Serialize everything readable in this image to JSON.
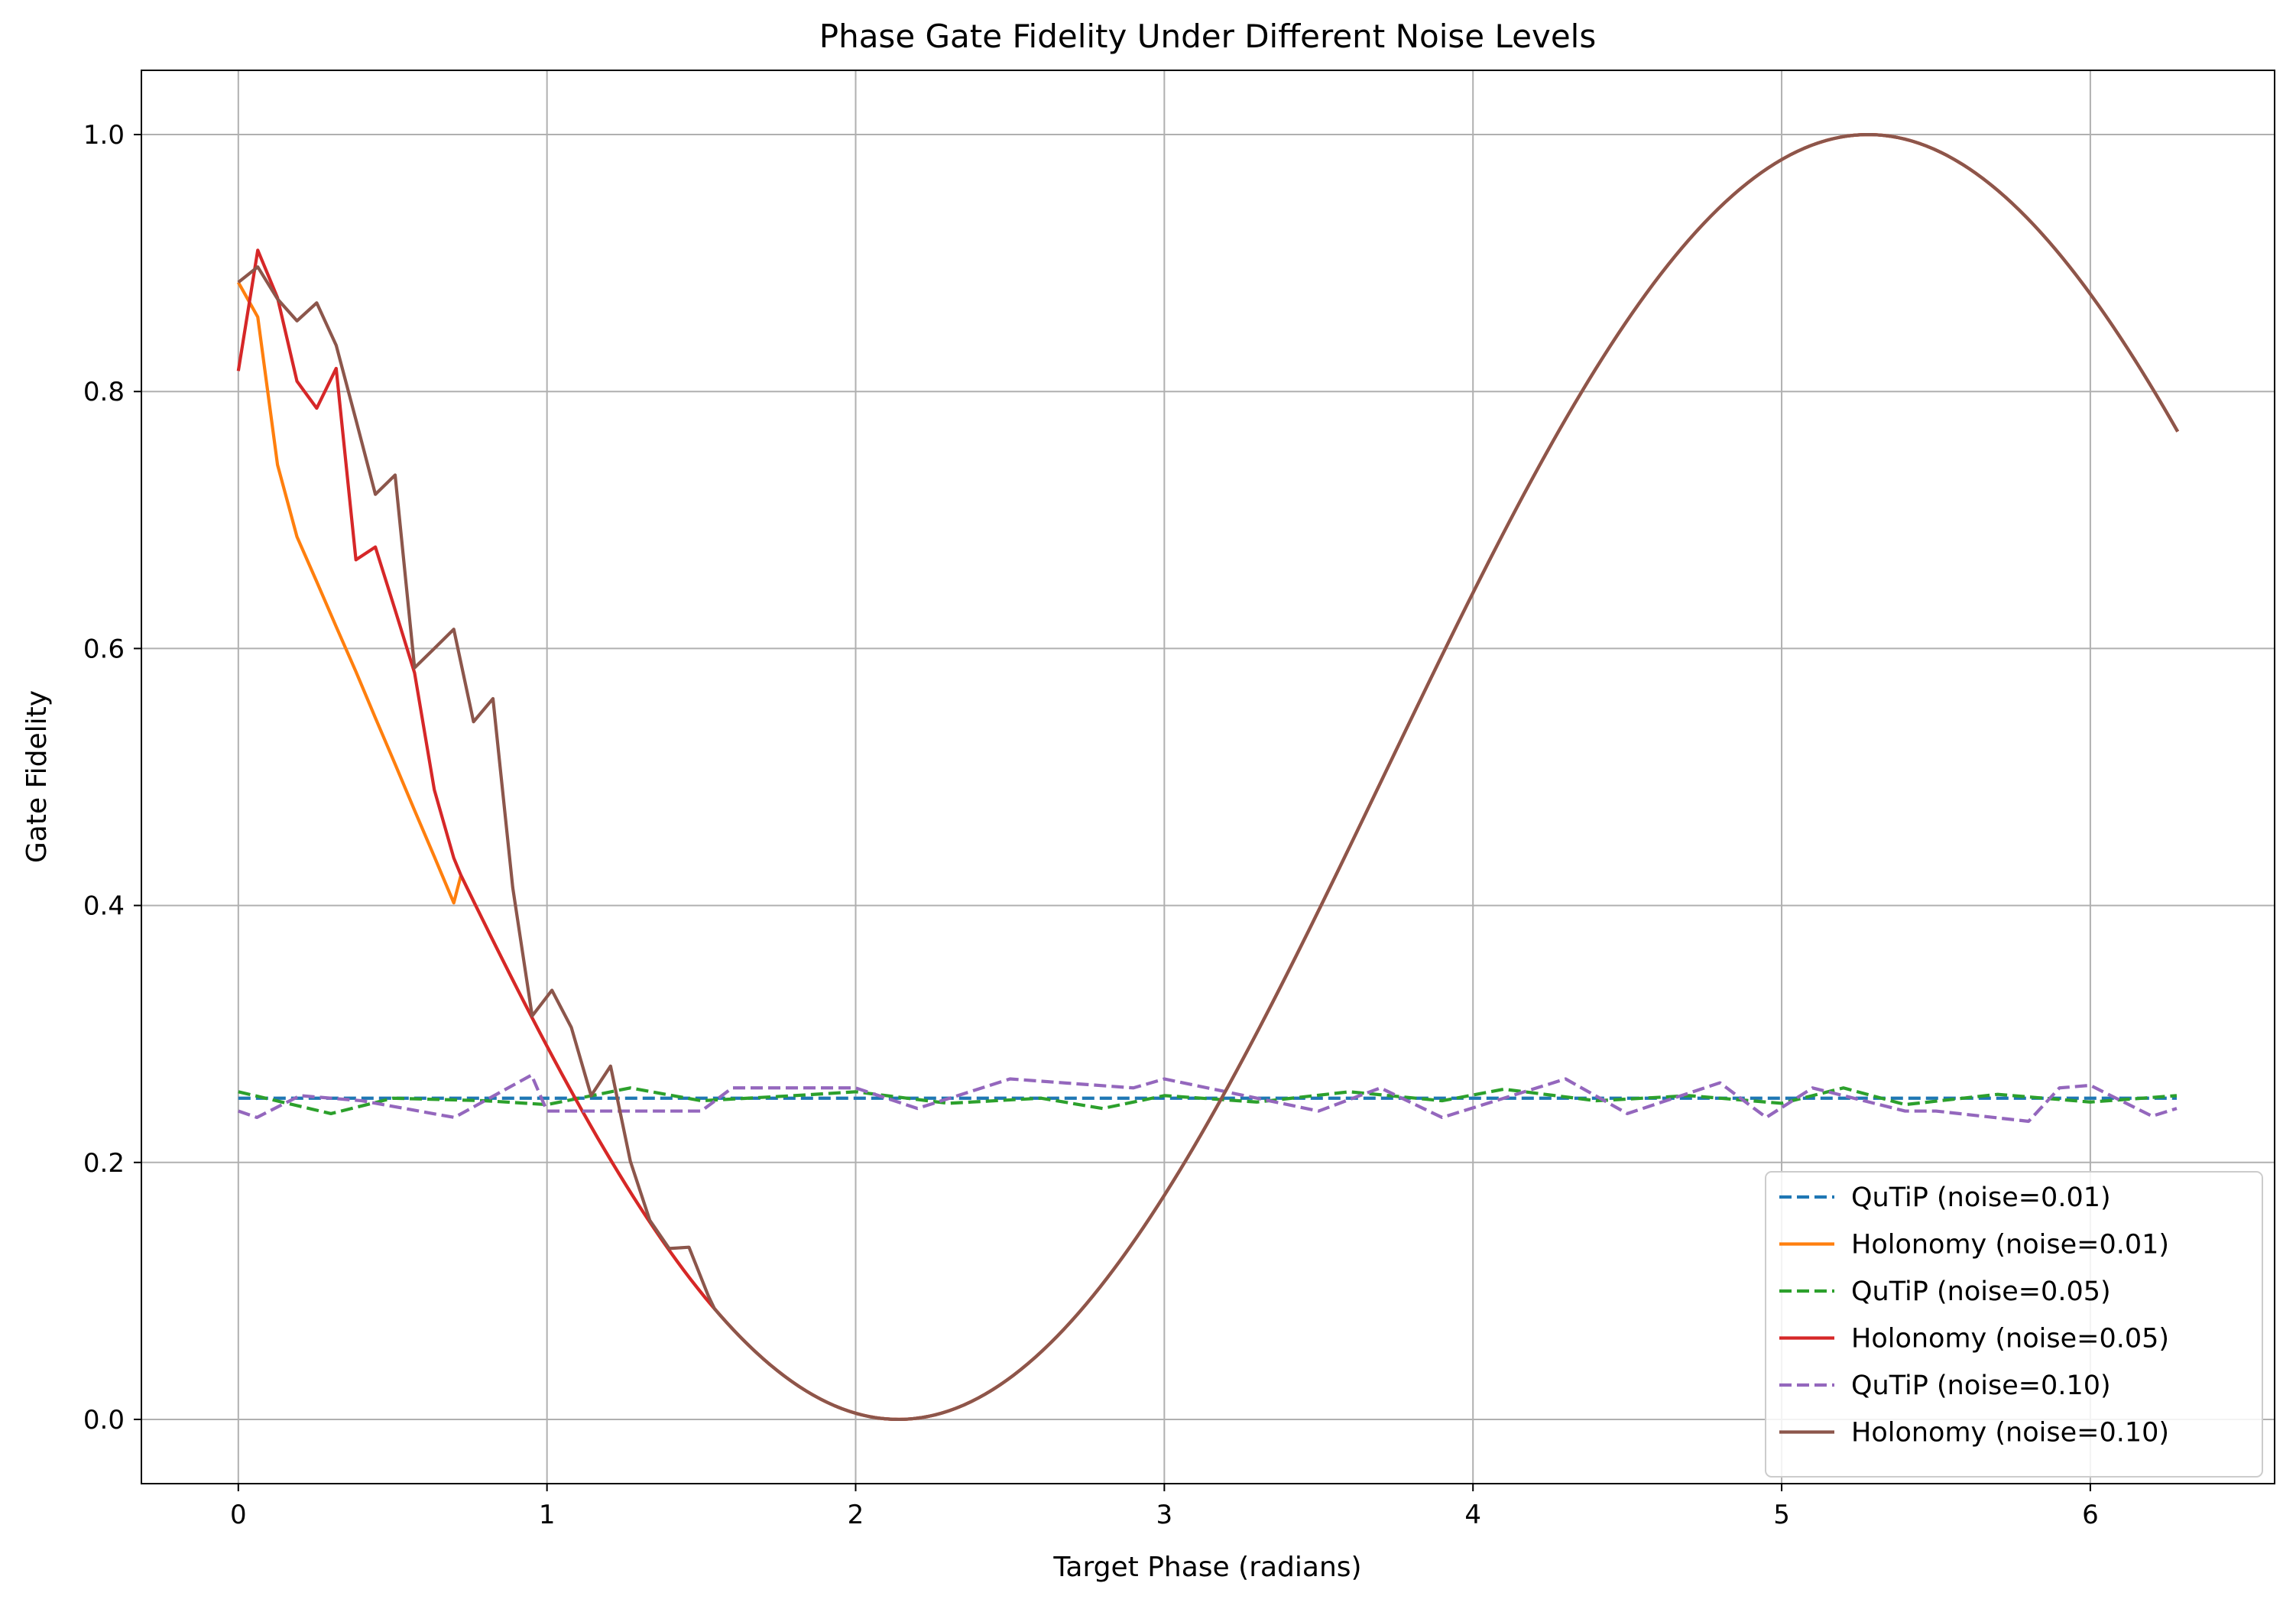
{
  "chart_data": {
    "type": "line",
    "title": "Phase Gate Fidelity Under Different Noise Levels",
    "xlabel": "Target Phase (radians)",
    "ylabel": "Gate Fidelity",
    "xlim": [
      -0.314,
      6.597
    ],
    "ylim": [
      -0.05,
      1.05
    ],
    "xticks": [
      0,
      1,
      2,
      3,
      4,
      5,
      6
    ],
    "yticks": [
      0.0,
      0.2,
      0.4,
      0.6,
      0.8,
      1.0
    ],
    "grid": true,
    "legend_position": "bottom-right",
    "series": [
      {
        "name": "QuTiP (noise=0.01)",
        "color": "#1f77b4",
        "dash": true,
        "x": [
          0,
          0.5,
          1.0,
          1.5,
          2.0,
          2.5,
          3.0,
          3.5,
          4.0,
          4.5,
          5.0,
          5.5,
          6.0,
          6.28
        ],
        "y": [
          0.25,
          0.25,
          0.25,
          0.25,
          0.25,
          0.25,
          0.25,
          0.25,
          0.25,
          0.25,
          0.25,
          0.25,
          0.25,
          0.25
        ]
      },
      {
        "name": "Holonomy (noise=0.01)",
        "color": "#ff7f0e",
        "dash": false,
        "x": [
          0,
          0.063,
          0.127,
          0.19,
          0.254,
          0.317,
          0.381,
          0.444,
          0.508,
          0.571,
          0.635,
          0.698
        ],
        "y": [
          0.885,
          0.858,
          0.743,
          0.687,
          0.652,
          0.617,
          0.582,
          0.546,
          0.51,
          0.474,
          0.438,
          0.402
        ]
      },
      {
        "name": "QuTiP (noise=0.05)",
        "color": "#2ca02c",
        "dash": true,
        "x": [
          0,
          0.3,
          0.5,
          0.8,
          1.0,
          1.27,
          1.5,
          1.8,
          2.0,
          2.3,
          2.6,
          2.8,
          3.0,
          3.3,
          3.6,
          3.9,
          4.1,
          4.4,
          4.7,
          5.0,
          5.2,
          5.4,
          5.7,
          6.0,
          6.28
        ],
        "y": [
          0.255,
          0.238,
          0.25,
          0.248,
          0.245,
          0.258,
          0.248,
          0.252,
          0.255,
          0.246,
          0.25,
          0.242,
          0.252,
          0.247,
          0.255,
          0.248,
          0.257,
          0.248,
          0.252,
          0.246,
          0.258,
          0.245,
          0.253,
          0.247,
          0.252
        ]
      },
      {
        "name": "Holonomy (noise=0.05)",
        "color": "#d62728",
        "dash": false,
        "x": [
          0,
          0.063,
          0.127,
          0.19,
          0.254,
          0.317,
          0.381,
          0.444,
          0.508,
          0.571,
          0.635,
          0.698
        ],
        "y": [
          0.816,
          0.91,
          0.873,
          0.808,
          0.787,
          0.818,
          0.669,
          0.679,
          0.63,
          0.581,
          0.49,
          0.437
        ]
      },
      {
        "name": "QuTiP (noise=0.10)",
        "color": "#9467bd",
        "dash": true,
        "x": [
          0,
          0.06,
          0.2,
          0.4,
          0.7,
          0.95,
          1.0,
          1.5,
          1.6,
          2.0,
          2.2,
          2.5,
          2.9,
          3.0,
          3.5,
          3.7,
          3.9,
          4.3,
          4.5,
          4.8,
          4.95,
          5.1,
          5.4,
          5.5,
          5.8,
          5.9,
          6.0,
          6.2,
          6.28
        ],
        "y": [
          0.24,
          0.235,
          0.252,
          0.248,
          0.235,
          0.268,
          0.24,
          0.24,
          0.258,
          0.258,
          0.242,
          0.265,
          0.258,
          0.265,
          0.24,
          0.258,
          0.235,
          0.265,
          0.238,
          0.262,
          0.235,
          0.258,
          0.24,
          0.24,
          0.232,
          0.258,
          0.26,
          0.236,
          0.242
        ]
      },
      {
        "name": "Holonomy (noise=0.10)",
        "color": "#8c564b",
        "dash": false,
        "x": [
          0,
          0.063,
          0.127,
          0.19,
          0.254,
          0.317,
          0.381,
          0.444,
          0.508,
          0.571,
          0.635,
          0.698,
          0.762,
          0.825,
          0.889,
          0.952,
          1.016,
          1.079,
          1.143,
          1.206,
          1.27,
          1.333,
          1.396,
          1.46,
          1.523
        ],
        "y": [
          0.885,
          0.897,
          0.872,
          0.855,
          0.869,
          0.836,
          0.778,
          0.72,
          0.735,
          0.585,
          0.6,
          0.615,
          0.543,
          0.561,
          0.414,
          0.314,
          0.334,
          0.305,
          0.252,
          0.275,
          0.201,
          0.155,
          0.133,
          0.134,
          0.096
        ]
      }
    ],
    "common_curve": {
      "description_formula": "cos^2((x - 5.28)/2)",
      "x_start": 0.698,
      "x_end": 6.283
    }
  }
}
